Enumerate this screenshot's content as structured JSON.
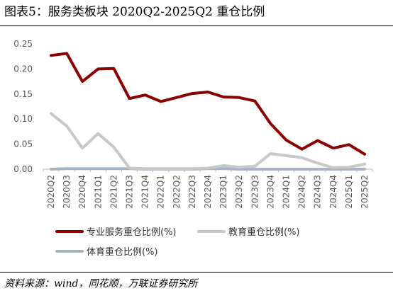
{
  "title": "图表5：服务类板块 2020Q2-2025Q2 重仓比例",
  "source": "资料来源：wind，同花顺，万联证券研究所",
  "chart_data": {
    "type": "line",
    "categories": [
      "2020Q2",
      "2020Q3",
      "2020Q4",
      "2021Q1",
      "2021Q2",
      "2021Q3",
      "2021Q4",
      "2022Q1",
      "2022Q2",
      "2022Q3",
      "2022Q4",
      "2023Q1",
      "2023Q2",
      "2023Q3",
      "2023Q4",
      "2024Q1",
      "2024Q2",
      "2024Q3",
      "2024Q4",
      "2025Q1",
      "2025Q2"
    ],
    "ylim": [
      0,
      0.25
    ],
    "yticks": [
      "0.00",
      "0.05",
      "0.10",
      "0.15",
      "0.20",
      "0.25"
    ],
    "legend_position": "bottom",
    "grid": false,
    "series": [
      {
        "name": "专业服务重仓比例(%)",
        "color": "#8B0000",
        "values": [
          0.227,
          0.231,
          0.175,
          0.2,
          0.201,
          0.141,
          0.148,
          0.135,
          0.143,
          0.151,
          0.154,
          0.144,
          0.143,
          0.136,
          0.091,
          0.058,
          0.04,
          0.057,
          0.042,
          0.049,
          0.03
        ]
      },
      {
        "name": "教育重仓比例(%)",
        "color": "#C8C8C8",
        "values": [
          0.111,
          0.086,
          0.042,
          0.071,
          0.044,
          0.002,
          0.001,
          0.001,
          0.001,
          0.001,
          0.002,
          0.007,
          0.004,
          0.006,
          0.031,
          0.027,
          0.023,
          0.012,
          0.003,
          0.004,
          0.01
        ]
      },
      {
        "name": "体育重仓比例(%)",
        "color": "#A9B4C2",
        "values": [
          0.0,
          0.001,
          0.001,
          0.001,
          0.001,
          0.001,
          0.0,
          0.0,
          0.0,
          0.0,
          0.001,
          0.001,
          0.0,
          0.0,
          0.0,
          0.0,
          0.0,
          0.0,
          0.0,
          0.0,
          0.0
        ]
      }
    ]
  }
}
